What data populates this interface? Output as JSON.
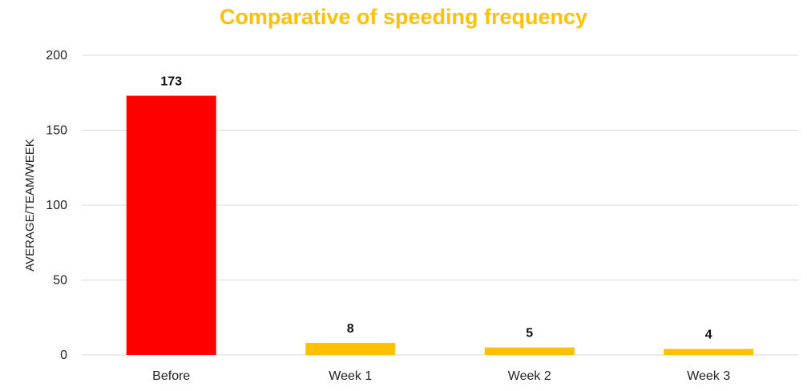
{
  "chart_data": {
    "type": "bar",
    "title": "Comparative of speeding frequency",
    "xlabel": "",
    "ylabel": "AVERAGE/TEAM/WEEK",
    "categories": [
      "Before",
      "Week 1",
      "Week 2",
      "Week 3"
    ],
    "values": [
      173,
      8,
      5,
      4
    ],
    "data_labels": [
      "173",
      "8",
      "5",
      "4"
    ],
    "bar_colors": [
      "#ff0000",
      "#ffc000",
      "#ffc000",
      "#ffc000"
    ],
    "title_color": "#ffc000",
    "ylim": [
      0,
      200
    ],
    "yticks": [
      0,
      50,
      100,
      150,
      200
    ],
    "grid": true,
    "legend": "none"
  }
}
